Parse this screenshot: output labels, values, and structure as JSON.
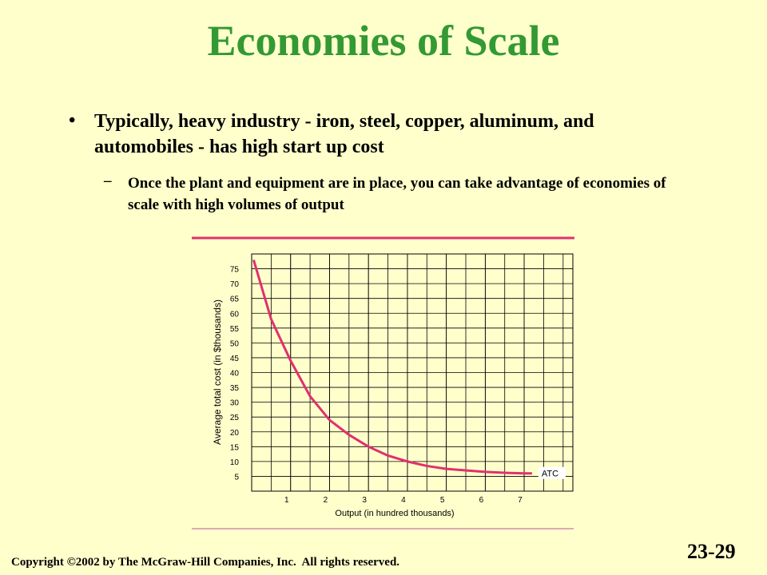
{
  "slide": {
    "title": "Economies of Scale",
    "bullet": "Typically, heavy industry - iron, steel, copper, aluminum, and automobiles - has high start up cost",
    "sub_bullet": "Once the plant and equipment are in place, you can take advantage of economies of scale with high volumes of output",
    "copyright": "Copyright ©2002 by The McGraw-Hill Companies, Inc.  All rights reserved.",
    "page_number": "23-29"
  },
  "chart_data": {
    "type": "line",
    "x_label": "Output (in hundred thousands)",
    "y_label": "Average total cost (in $thousands)",
    "xlim": [
      0,
      8.25
    ],
    "xticks": [
      1,
      2,
      3,
      4,
      5,
      6,
      7
    ],
    "ylim": [
      0,
      80
    ],
    "yticks": [
      5,
      10,
      15,
      20,
      25,
      30,
      35,
      40,
      45,
      50,
      55,
      60,
      65,
      70,
      75
    ],
    "grid": true,
    "x": [
      0.05,
      0.5,
      1,
      1.5,
      2,
      2.5,
      3,
      3.5,
      4,
      4.5,
      5,
      5.5,
      6,
      6.5,
      7,
      7.2
    ],
    "series": [
      {
        "name": "ATC",
        "color": "#e0306e",
        "values": [
          78,
          58,
          44,
          32,
          24,
          19,
          15,
          12,
          10,
          8.5,
          7.5,
          7,
          6.5,
          6.2,
          6,
          6
        ]
      }
    ]
  }
}
